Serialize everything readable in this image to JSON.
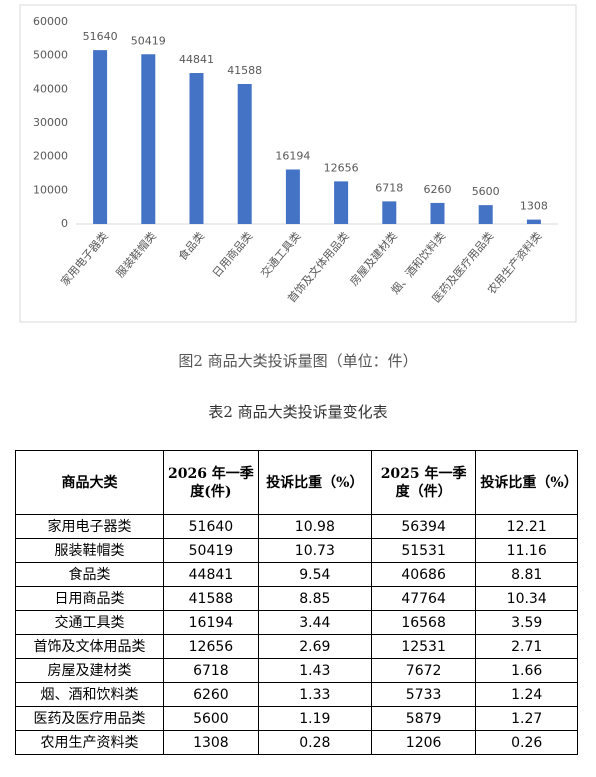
{
  "chart_data": {
    "type": "bar",
    "categories": [
      "家用电子器类",
      "服装鞋帽类",
      "食品类",
      "日用商品类",
      "交通工具类",
      "首饰及文体用品类",
      "房屋及建材类",
      "烟、酒和饮料类",
      "医药及医疗用品类",
      "农用生产资料类"
    ],
    "values": [
      51640,
      50419,
      44841,
      41588,
      16194,
      12656,
      6718,
      6260,
      5600,
      1308
    ],
    "color": "#4472c4",
    "ylim": [
      0,
      60000
    ],
    "yticks": [
      0,
      10000,
      20000,
      30000,
      40000,
      50000,
      60000
    ]
  },
  "figure_caption": "图2 商品大类投诉量图（单位：件）",
  "table_title": "表2 商品大类投诉量变化表",
  "table": {
    "header": [
      "商品大类",
      "2026 年一季度(件)",
      "投诉比重（%）",
      "2025 年一季度（件）",
      "投诉比重（%）"
    ],
    "rows": [
      [
        "家用电子器类",
        51640,
        10.98,
        56394,
        12.21
      ],
      [
        "服装鞋帽类",
        50419,
        10.73,
        51531,
        11.16
      ],
      [
        "食品类",
        44841,
        9.54,
        40686,
        8.81
      ],
      [
        "日用商品类",
        41588,
        8.85,
        47764,
        10.34
      ],
      [
        "交通工具类",
        16194,
        3.44,
        16568,
        3.59
      ],
      [
        "首饰及文体用品类",
        12656,
        2.69,
        12531,
        2.71
      ],
      [
        "房屋及建材类",
        6718,
        1.43,
        7672,
        1.66
      ],
      [
        "烟、酒和饮料类",
        6260,
        1.33,
        5733,
        1.24
      ],
      [
        "医药及医疗用品类",
        5600,
        1.19,
        5879,
        1.27
      ],
      [
        "农用生产资料类",
        1308,
        0.28,
        1206,
        0.26
      ]
    ]
  }
}
